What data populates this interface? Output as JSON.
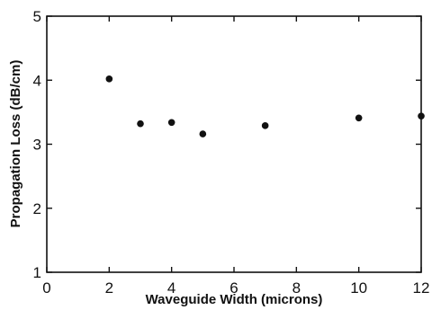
{
  "chart_data": {
    "type": "scatter",
    "title": "",
    "xlabel": "Waveguide Width (microns)",
    "ylabel": "Propagation Loss (dB/cm)",
    "xlim": [
      0,
      12
    ],
    "ylim": [
      1,
      5
    ],
    "xticks": [
      0,
      2,
      4,
      6,
      8,
      10,
      12
    ],
    "yticks": [
      1,
      2,
      3,
      4,
      5
    ],
    "xtick_labels": [
      "0",
      "2",
      "4",
      "6",
      "8",
      "10",
      "12"
    ],
    "ytick_labels": [
      "1",
      "2",
      "3",
      "4",
      "5"
    ],
    "grid": false,
    "legend": "none",
    "series": [
      {
        "x": [
          2,
          3,
          4,
          5,
          7,
          10,
          12
        ],
        "y": [
          4.02,
          3.32,
          3.34,
          3.16,
          3.29,
          3.41,
          3.44
        ]
      }
    ],
    "colors": {
      "marker": "#111111",
      "axis": "#111111"
    }
  }
}
